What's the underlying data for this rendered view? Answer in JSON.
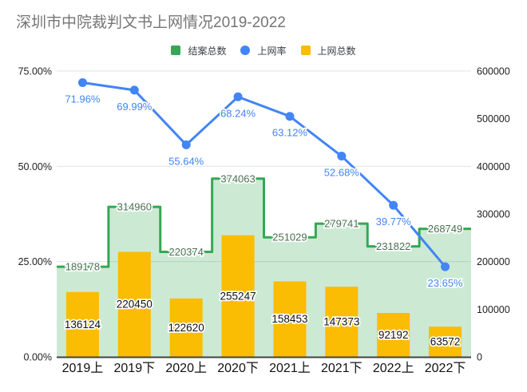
{
  "title": "深圳市中院裁判文书上网情况2019-2022",
  "legend": [
    {
      "label": "结案总数",
      "color": "#34A853",
      "shape": "square"
    },
    {
      "label": "上网率",
      "color": "#4285F4",
      "shape": "circle"
    },
    {
      "label": "上网总数",
      "color": "#FBBC04",
      "shape": "square"
    }
  ],
  "chart_data": {
    "type": "combo",
    "title": "深圳市中院裁判文书上网情况2019-2022",
    "categories": [
      "2019上",
      "2019下",
      "2020上",
      "2020下",
      "2021上",
      "2021下",
      "2022上",
      "2022下"
    ],
    "series": [
      {
        "name": "结案总数",
        "type": "stepped_area",
        "axis": "right",
        "color": "#34A853",
        "fill_opacity": 0.25,
        "label_color": "#4b6e52",
        "values": [
          189178,
          314960,
          220374,
          374063,
          251029,
          279741,
          231822,
          268749
        ]
      },
      {
        "name": "上网率",
        "type": "line",
        "axis": "left",
        "color": "#4285F4",
        "label_color": "#4285F4",
        "values": [
          71.96,
          69.99,
          55.64,
          68.24,
          63.12,
          52.68,
          39.77,
          23.65
        ],
        "value_labels": [
          "71.96%",
          "69.99%",
          "55.64%",
          "68.24%",
          "63.12%",
          "52.68%",
          "39.77%",
          "23.65%"
        ]
      },
      {
        "name": "上网总数",
        "type": "bar",
        "axis": "right",
        "color": "#FBBC04",
        "label_color": "#111111",
        "values": [
          136124,
          220450,
          122620,
          255247,
          158453,
          147373,
          92192,
          63572
        ]
      }
    ],
    "left_axis": {
      "min": 0,
      "max": 75,
      "ticks": [
        "0.00%",
        "25.00%",
        "50.00%",
        "75.00%"
      ],
      "tick_values": [
        0,
        25,
        50,
        75
      ]
    },
    "right_axis": {
      "min": 0,
      "max": 600000,
      "ticks": [
        "0",
        "100000",
        "200000",
        "300000",
        "400000",
        "500000",
        "600000"
      ],
      "tick_values": [
        0,
        100000,
        200000,
        300000,
        400000,
        500000,
        600000
      ]
    },
    "grid": {
      "gridline_values_left": [
        25,
        50,
        75
      ],
      "gridline_color": "#e3e3e3",
      "baseline_color": "#424242",
      "legend_position": "top"
    }
  }
}
